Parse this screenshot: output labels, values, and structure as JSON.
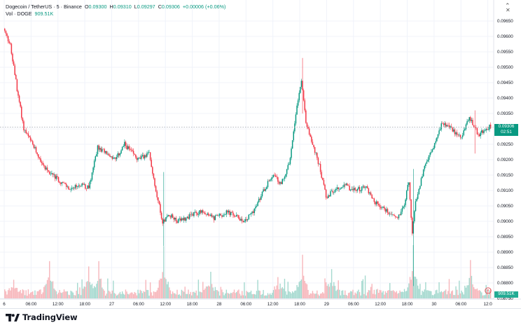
{
  "legend": {
    "symbol": "Dogecoin / TetherUS · 5 · Binance",
    "o_key": "O",
    "o_val": "0.09300",
    "h_key": "H",
    "h_val": "0.09310",
    "l_key": "L",
    "l_val": "0.09297",
    "c_key": "C",
    "c_val": "0.09306",
    "change": "+0.00006 (+0.06%)",
    "vol_label": "Vol · DOGE",
    "vol_val": "909.51K"
  },
  "price_tag": {
    "price": "0.09306",
    "countdown": "02:51",
    "volume": "909.51K"
  },
  "footer": {
    "brand": "TradingView"
  },
  "colors": {
    "up": "#089981",
    "down": "#f23645",
    "vol_up": "#a5d9cf",
    "vol_down": "#f7b6bb",
    "grid": "#f0f3fa"
  },
  "chart_data": {
    "type": "candlestick",
    "ylim": [
      0.0875,
      0.097
    ],
    "y_ticks": [
      "0.09650",
      "0.09600",
      "0.09550",
      "0.09500",
      "0.09450",
      "0.09400",
      "0.09350",
      "0.09300",
      "0.09250",
      "0.09200",
      "0.09150",
      "0.09100",
      "0.09050",
      "0.09000",
      "0.08950",
      "0.08900",
      "0.08850",
      "0.08800",
      "0.08750"
    ],
    "x_ticks": [
      "6",
      "06:00",
      "12:00",
      "18:00",
      "27",
      "06:00",
      "12:00",
      "18:00",
      "28",
      "06:00",
      "12:00",
      "18:00",
      "29",
      "06:00",
      "12:00",
      "18:00",
      "30",
      "06:00",
      "12:0"
    ],
    "x_tick_times": [
      0,
      6,
      12,
      18,
      24,
      30,
      36,
      42,
      48,
      54,
      60,
      66,
      72,
      78,
      84,
      90,
      96,
      102,
      108
    ],
    "time_unit": "hours",
    "price_path": [
      {
        "t": 0.0,
        "p": 0.09625
      },
      {
        "t": 1.5,
        "p": 0.0957
      },
      {
        "t": 3.0,
        "p": 0.0943
      },
      {
        "t": 4.5,
        "p": 0.093
      },
      {
        "t": 6.0,
        "p": 0.0926
      },
      {
        "t": 9.0,
        "p": 0.0918
      },
      {
        "t": 11.0,
        "p": 0.0915
      },
      {
        "t": 13.5,
        "p": 0.0912
      },
      {
        "t": 15.0,
        "p": 0.091
      },
      {
        "t": 17.0,
        "p": 0.0912
      },
      {
        "t": 19.0,
        "p": 0.0911
      },
      {
        "t": 21.0,
        "p": 0.0924
      },
      {
        "t": 23.0,
        "p": 0.0922
      },
      {
        "t": 25.0,
        "p": 0.092
      },
      {
        "t": 27.0,
        "p": 0.0925
      },
      {
        "t": 30.0,
        "p": 0.092
      },
      {
        "t": 32.5,
        "p": 0.0922
      },
      {
        "t": 34.0,
        "p": 0.091
      },
      {
        "t": 35.5,
        "p": 0.09
      },
      {
        "t": 37.0,
        "p": 0.0902
      },
      {
        "t": 39.0,
        "p": 0.09
      },
      {
        "t": 42.0,
        "p": 0.0902
      },
      {
        "t": 44.0,
        "p": 0.0903
      },
      {
        "t": 47.0,
        "p": 0.0901
      },
      {
        "t": 50.0,
        "p": 0.0903
      },
      {
        "t": 54.0,
        "p": 0.09
      },
      {
        "t": 56.5,
        "p": 0.0905
      },
      {
        "t": 58.0,
        "p": 0.091
      },
      {
        "t": 60.0,
        "p": 0.0915
      },
      {
        "t": 62.0,
        "p": 0.0912
      },
      {
        "t": 64.0,
        "p": 0.092
      },
      {
        "t": 65.5,
        "p": 0.0938
      },
      {
        "t": 66.5,
        "p": 0.0946
      },
      {
        "t": 67.5,
        "p": 0.0932
      },
      {
        "t": 69.0,
        "p": 0.0925
      },
      {
        "t": 70.5,
        "p": 0.0918
      },
      {
        "t": 72.0,
        "p": 0.0908
      },
      {
        "t": 74.0,
        "p": 0.091
      },
      {
        "t": 76.0,
        "p": 0.0912
      },
      {
        "t": 78.0,
        "p": 0.091
      },
      {
        "t": 81.0,
        "p": 0.0911
      },
      {
        "t": 83.0,
        "p": 0.0906
      },
      {
        "t": 86.0,
        "p": 0.0903
      },
      {
        "t": 88.0,
        "p": 0.0901
      },
      {
        "t": 89.5,
        "p": 0.0906
      },
      {
        "t": 90.5,
        "p": 0.0913
      },
      {
        "t": 91.2,
        "p": 0.0896
      },
      {
        "t": 92.0,
        "p": 0.0906
      },
      {
        "t": 94.0,
        "p": 0.0918
      },
      {
        "t": 96.0,
        "p": 0.0924
      },
      {
        "t": 98.0,
        "p": 0.0932
      },
      {
        "t": 100.0,
        "p": 0.093
      },
      {
        "t": 102.0,
        "p": 0.0927
      },
      {
        "t": 104.0,
        "p": 0.0934
      },
      {
        "t": 106.0,
        "p": 0.0928
      },
      {
        "t": 108.5,
        "p": 0.09306
      }
    ],
    "spikes": [
      {
        "t": 35.4,
        "high": 0.0916,
        "low": 0.0892
      },
      {
        "t": 66.4,
        "high": 0.0953,
        "low": 0.0935
      },
      {
        "t": 91.2,
        "high": 0.0917,
        "low": 0.0879
      },
      {
        "t": 105.0,
        "high": 0.0936,
        "low": 0.0922
      }
    ],
    "volume_peaks": [
      {
        "t": 2.0,
        "v": 0.35
      },
      {
        "t": 10.0,
        "v": 0.7
      },
      {
        "t": 18.8,
        "v": 0.6
      },
      {
        "t": 21.0,
        "v": 0.7
      },
      {
        "t": 35.4,
        "v": 0.98
      },
      {
        "t": 46.0,
        "v": 0.5
      },
      {
        "t": 61.0,
        "v": 0.4
      },
      {
        "t": 66.4,
        "v": 0.82
      },
      {
        "t": 73.0,
        "v": 0.55
      },
      {
        "t": 91.2,
        "v": 1.0
      },
      {
        "t": 104.0,
        "v": 0.72
      }
    ],
    "last_price": 0.09306,
    "last_price_line": true,
    "grid": true,
    "legend_position": "top-left"
  }
}
